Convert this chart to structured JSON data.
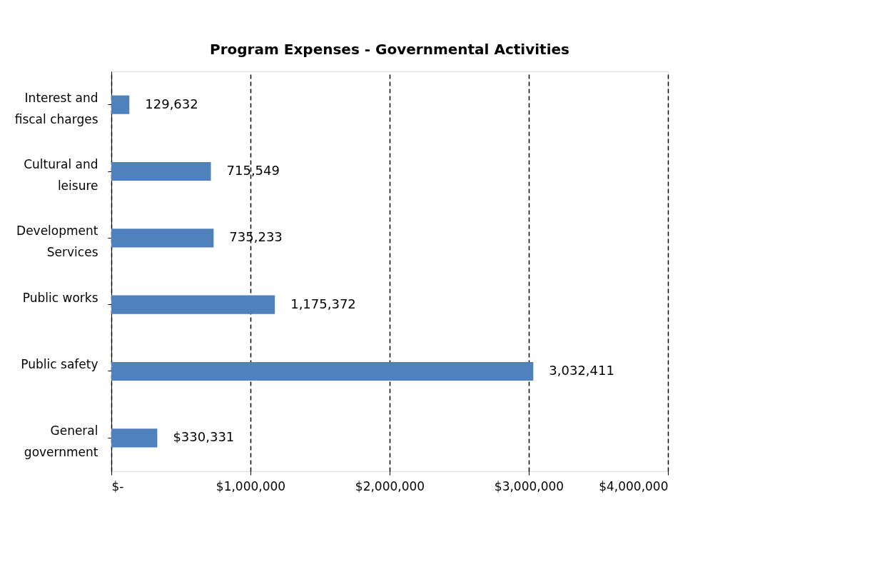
{
  "chart_data": {
    "type": "bar",
    "orientation": "horizontal",
    "title": "Program Expenses - Governmental Activities",
    "categories": [
      "Interest and\nfiscal charges",
      "Cultural and\nleisure",
      "Development\nServices",
      "Public works",
      "Public safety",
      "General\ngovernment"
    ],
    "values": [
      129632,
      715549,
      735233,
      1175372,
      3032411,
      330331
    ],
    "value_labels": [
      "129,632",
      "715,549",
      "735,233",
      "1,175,372",
      "3,032,411",
      "$330,331"
    ],
    "color": "#4f81bd",
    "xlim": [
      0,
      4000000
    ],
    "xticks": [
      {
        "value": 0,
        "label": "$-"
      },
      {
        "value": 1000000,
        "label": "$1,000,000"
      },
      {
        "value": 2000000,
        "label": "$2,000,000"
      },
      {
        "value": 3000000,
        "label": "$3,000,000"
      },
      {
        "value": 4000000,
        "label": "$4,000,000"
      }
    ],
    "grid": "x",
    "line_style": "dashed"
  }
}
